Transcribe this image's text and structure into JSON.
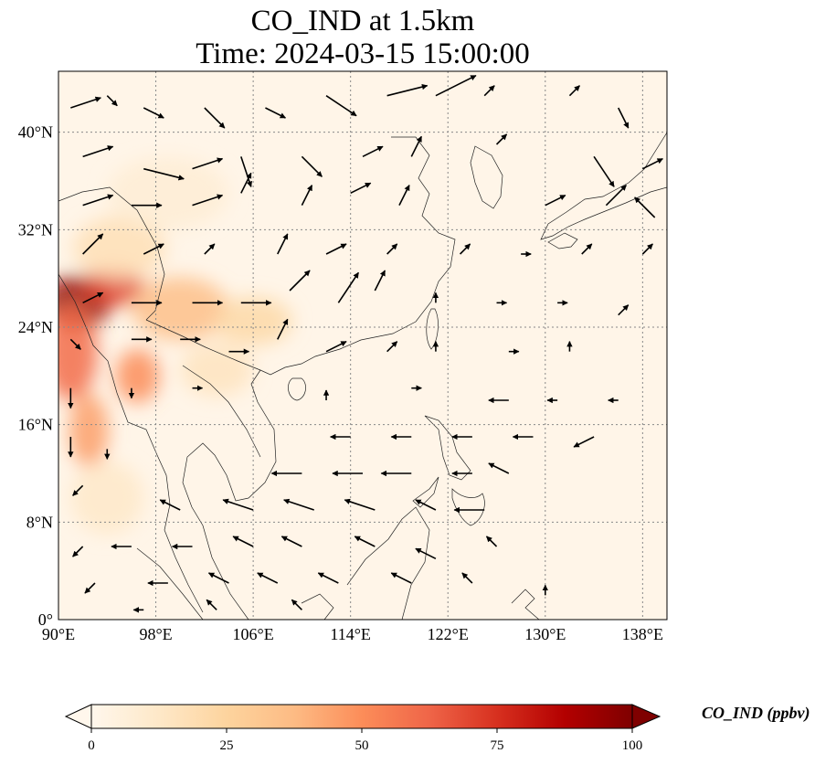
{
  "title": {
    "line1": "CO_IND at 1.5km",
    "line2": "Time: 2024-03-15 15:00:00"
  },
  "map": {
    "lon_range": [
      90,
      140
    ],
    "lat_range": [
      0,
      45
    ],
    "lon_ticks": [
      {
        "value": 90,
        "label": "90°E"
      },
      {
        "value": 98,
        "label": "98°E"
      },
      {
        "value": 106,
        "label": "106°E"
      },
      {
        "value": 114,
        "label": "114°E"
      },
      {
        "value": 122,
        "label": "122°E"
      },
      {
        "value": 130,
        "label": "130°E"
      },
      {
        "value": 138,
        "label": "138°E"
      }
    ],
    "lat_ticks": [
      {
        "value": 0,
        "label": "0°"
      },
      {
        "value": 8,
        "label": "8°N"
      },
      {
        "value": 16,
        "label": "16°N"
      },
      {
        "value": 24,
        "label": "24°N"
      },
      {
        "value": 32,
        "label": "32°N"
      },
      {
        "value": 40,
        "label": "40°N"
      }
    ],
    "gridlines": true
  },
  "colorbar": {
    "label": "CO_IND (ppbv)",
    "min": 0,
    "max": 100,
    "ticks": [
      {
        "value": 0,
        "label": "0"
      },
      {
        "value": 25,
        "label": "25"
      },
      {
        "value": 50,
        "label": "50"
      },
      {
        "value": 75,
        "label": "75"
      },
      {
        "value": 100,
        "label": "100"
      }
    ],
    "colormap": "OrRd",
    "extend": "both",
    "colors": [
      "#fff7ec",
      "#fee8c8",
      "#fdd49e",
      "#fdbb84",
      "#fc8d59",
      "#ef6548",
      "#d7301f",
      "#b30000",
      "#7f0000"
    ]
  },
  "field_blobs": [
    {
      "lon": 91.5,
      "lat": 26.0,
      "rx": 2.8,
      "ry": 2.2,
      "value": 95
    },
    {
      "lon": 94.5,
      "lat": 27.3,
      "rx": 2.5,
      "ry": 1.6,
      "value": 70
    },
    {
      "lon": 91.0,
      "lat": 22.0,
      "rx": 2.2,
      "ry": 4.0,
      "value": 60
    },
    {
      "lon": 96.5,
      "lat": 20.0,
      "rx": 1.8,
      "ry": 2.2,
      "value": 50
    },
    {
      "lon": 92.5,
      "lat": 15.5,
      "rx": 1.6,
      "ry": 3.0,
      "value": 45
    },
    {
      "lon": 100.0,
      "lat": 25.5,
      "rx": 4.0,
      "ry": 2.6,
      "value": 35
    },
    {
      "lon": 106.0,
      "lat": 24.5,
      "rx": 3.2,
      "ry": 2.0,
      "value": 22
    },
    {
      "lon": 95.0,
      "lat": 30.5,
      "rx": 3.8,
      "ry": 2.6,
      "value": 18
    },
    {
      "lon": 103.0,
      "lat": 20.5,
      "rx": 3.0,
      "ry": 2.2,
      "value": 15
    },
    {
      "lon": 99.0,
      "lat": 35.0,
      "rx": 5.0,
      "ry": 3.0,
      "value": 8
    },
    {
      "lon": 94.0,
      "lat": 10.0,
      "rx": 3.0,
      "ry": 3.0,
      "value": 12
    }
  ],
  "wind_vectors": [
    {
      "lon": 91,
      "lat": 42,
      "u": 3,
      "v": 1
    },
    {
      "lon": 94,
      "lat": 43,
      "u": 1,
      "v": -1
    },
    {
      "lon": 97,
      "lat": 42,
      "u": 2,
      "v": -1
    },
    {
      "lon": 102,
      "lat": 42,
      "u": 2,
      "v": -2
    },
    {
      "lon": 107,
      "lat": 42,
      "u": 2,
      "v": -1
    },
    {
      "lon": 112,
      "lat": 43,
      "u": 3,
      "v": -2
    },
    {
      "lon": 117,
      "lat": 43,
      "u": 4,
      "v": 1
    },
    {
      "lon": 121,
      "lat": 43,
      "u": 4,
      "v": 2
    },
    {
      "lon": 125,
      "lat": 43,
      "u": 1,
      "v": 1
    },
    {
      "lon": 132,
      "lat": 43,
      "u": 1,
      "v": 1
    },
    {
      "lon": 136,
      "lat": 42,
      "u": 1,
      "v": -2
    },
    {
      "lon": 92,
      "lat": 38,
      "u": 3,
      "v": 1
    },
    {
      "lon": 97,
      "lat": 37,
      "u": 4,
      "v": -1
    },
    {
      "lon": 101,
      "lat": 37,
      "u": 3,
      "v": 1
    },
    {
      "lon": 105,
      "lat": 38,
      "u": 1,
      "v": -3
    },
    {
      "lon": 110,
      "lat": 38,
      "u": 2,
      "v": -2
    },
    {
      "lon": 115,
      "lat": 38,
      "u": 2,
      "v": 1
    },
    {
      "lon": 119,
      "lat": 38,
      "u": 1,
      "v": 2
    },
    {
      "lon": 126,
      "lat": 39,
      "u": 1,
      "v": 1
    },
    {
      "lon": 134,
      "lat": 38,
      "u": 2,
      "v": -3
    },
    {
      "lon": 138,
      "lat": 37,
      "u": 2,
      "v": 1
    },
    {
      "lon": 92,
      "lat": 34,
      "u": 3,
      "v": 1
    },
    {
      "lon": 96,
      "lat": 34,
      "u": 3,
      "v": 0
    },
    {
      "lon": 101,
      "lat": 34,
      "u": 3,
      "v": 1
    },
    {
      "lon": 105,
      "lat": 35,
      "u": 1,
      "v": 2
    },
    {
      "lon": 110,
      "lat": 34,
      "u": 1,
      "v": 2
    },
    {
      "lon": 114,
      "lat": 35,
      "u": 2,
      "v": 1
    },
    {
      "lon": 118,
      "lat": 34,
      "u": 1,
      "v": 2
    },
    {
      "lon": 130,
      "lat": 34,
      "u": 2,
      "v": 1
    },
    {
      "lon": 135,
      "lat": 34,
      "u": 2,
      "v": 2
    },
    {
      "lon": 139,
      "lat": 33,
      "u": -2,
      "v": 2
    },
    {
      "lon": 92,
      "lat": 30,
      "u": 2,
      "v": 2
    },
    {
      "lon": 97,
      "lat": 30,
      "u": 2,
      "v": 1
    },
    {
      "lon": 102,
      "lat": 30,
      "u": 1,
      "v": 1
    },
    {
      "lon": 108,
      "lat": 30,
      "u": 1,
      "v": 2
    },
    {
      "lon": 112,
      "lat": 30,
      "u": 2,
      "v": 1
    },
    {
      "lon": 117,
      "lat": 30,
      "u": 1,
      "v": 1
    },
    {
      "lon": 123,
      "lat": 30,
      "u": 1,
      "v": 1
    },
    {
      "lon": 128,
      "lat": 30,
      "u": 1,
      "v": 0
    },
    {
      "lon": 133,
      "lat": 30,
      "u": 1,
      "v": 1
    },
    {
      "lon": 138,
      "lat": 30,
      "u": 1,
      "v": 1
    },
    {
      "lon": 92,
      "lat": 26,
      "u": 2,
      "v": 1
    },
    {
      "lon": 96,
      "lat": 26,
      "u": 3,
      "v": 0
    },
    {
      "lon": 101,
      "lat": 26,
      "u": 3,
      "v": 0
    },
    {
      "lon": 105,
      "lat": 26,
      "u": 3,
      "v": 0
    },
    {
      "lon": 109,
      "lat": 27,
      "u": 2,
      "v": 2
    },
    {
      "lon": 113,
      "lat": 26,
      "u": 2,
      "v": 3
    },
    {
      "lon": 116,
      "lat": 27,
      "u": 1,
      "v": 2
    },
    {
      "lon": 121,
      "lat": 26,
      "u": 0,
      "v": 1
    },
    {
      "lon": 126,
      "lat": 26,
      "u": 1,
      "v": 0
    },
    {
      "lon": 131,
      "lat": 26,
      "u": 1,
      "v": 0
    },
    {
      "lon": 136,
      "lat": 25,
      "u": 1,
      "v": 1
    },
    {
      "lon": 91,
      "lat": 23,
      "u": 1,
      "v": -1
    },
    {
      "lon": 96,
      "lat": 23,
      "u": 2,
      "v": 0
    },
    {
      "lon": 100,
      "lat": 23,
      "u": 2,
      "v": 0
    },
    {
      "lon": 104,
      "lat": 22,
      "u": 2,
      "v": 0
    },
    {
      "lon": 108,
      "lat": 23,
      "u": 1,
      "v": 2
    },
    {
      "lon": 112,
      "lat": 22,
      "u": 2,
      "v": 1
    },
    {
      "lon": 117,
      "lat": 22,
      "u": 1,
      "v": 1
    },
    {
      "lon": 121,
      "lat": 22,
      "u": 0,
      "v": 1
    },
    {
      "lon": 127,
      "lat": 22,
      "u": 1,
      "v": 0
    },
    {
      "lon": 132,
      "lat": 22,
      "u": 0,
      "v": 1
    },
    {
      "lon": 91,
      "lat": 19,
      "u": 0,
      "v": -2
    },
    {
      "lon": 96,
      "lat": 19,
      "u": 0,
      "v": -1
    },
    {
      "lon": 101,
      "lat": 19,
      "u": 1,
      "v": 0
    },
    {
      "lon": 112,
      "lat": 18,
      "u": 0,
      "v": 1
    },
    {
      "lon": 119,
      "lat": 19,
      "u": 1,
      "v": 0
    },
    {
      "lon": 127,
      "lat": 18,
      "u": -2,
      "v": 0
    },
    {
      "lon": 131,
      "lat": 18,
      "u": -1,
      "v": 0
    },
    {
      "lon": 136,
      "lat": 18,
      "u": -1,
      "v": 0
    },
    {
      "lon": 91,
      "lat": 15,
      "u": 0,
      "v": -2
    },
    {
      "lon": 94,
      "lat": 14,
      "u": 0,
      "v": -1
    },
    {
      "lon": 114,
      "lat": 15,
      "u": -2,
      "v": 0
    },
    {
      "lon": 119,
      "lat": 15,
      "u": -2,
      "v": 0
    },
    {
      "lon": 124,
      "lat": 15,
      "u": -2,
      "v": 0
    },
    {
      "lon": 129,
      "lat": 15,
      "u": -2,
      "v": 0
    },
    {
      "lon": 134,
      "lat": 15,
      "u": -2,
      "v": -1
    },
    {
      "lon": 110,
      "lat": 12,
      "u": -3,
      "v": 0
    },
    {
      "lon": 115,
      "lat": 12,
      "u": -3,
      "v": 0
    },
    {
      "lon": 119,
      "lat": 12,
      "u": -3,
      "v": 0
    },
    {
      "lon": 124,
      "lat": 12,
      "u": -2,
      "v": 0
    },
    {
      "lon": 127,
      "lat": 12,
      "u": -2,
      "v": 1
    },
    {
      "lon": 92,
      "lat": 11,
      "u": -1,
      "v": -1
    },
    {
      "lon": 100,
      "lat": 9,
      "u": -2,
      "v": 1
    },
    {
      "lon": 106,
      "lat": 9,
      "u": -3,
      "v": 1
    },
    {
      "lon": 111,
      "lat": 9,
      "u": -3,
      "v": 1
    },
    {
      "lon": 116,
      "lat": 9,
      "u": -3,
      "v": 1
    },
    {
      "lon": 121,
      "lat": 9,
      "u": -2,
      "v": 1
    },
    {
      "lon": 125,
      "lat": 9,
      "u": -3,
      "v": 0
    },
    {
      "lon": 92,
      "lat": 6,
      "u": -1,
      "v": -1
    },
    {
      "lon": 96,
      "lat": 6,
      "u": -2,
      "v": 0
    },
    {
      "lon": 101,
      "lat": 6,
      "u": -2,
      "v": 0
    },
    {
      "lon": 106,
      "lat": 6,
      "u": -2,
      "v": 1
    },
    {
      "lon": 110,
      "lat": 6,
      "u": -2,
      "v": 1
    },
    {
      "lon": 116,
      "lat": 6,
      "u": -2,
      "v": 1
    },
    {
      "lon": 121,
      "lat": 5,
      "u": -2,
      "v": 1
    },
    {
      "lon": 126,
      "lat": 6,
      "u": -1,
      "v": 1
    },
    {
      "lon": 93,
      "lat": 3,
      "u": -1,
      "v": -1
    },
    {
      "lon": 99,
      "lat": 3,
      "u": -2,
      "v": 0
    },
    {
      "lon": 104,
      "lat": 3,
      "u": -2,
      "v": 1
    },
    {
      "lon": 108,
      "lat": 3,
      "u": -2,
      "v": 1
    },
    {
      "lon": 113,
      "lat": 3,
      "u": -2,
      "v": 1
    },
    {
      "lon": 119,
      "lat": 3,
      "u": -2,
      "v": 1
    },
    {
      "lon": 124,
      "lat": 3,
      "u": -1,
      "v": 1
    },
    {
      "lon": 130,
      "lat": 2,
      "u": 0,
      "v": 1
    },
    {
      "lon": 97,
      "lat": 0.8,
      "u": -1,
      "v": 0
    },
    {
      "lon": 103,
      "lat": 0.8,
      "u": -1,
      "v": 1
    },
    {
      "lon": 110,
      "lat": 0.8,
      "u": -1,
      "v": 1
    }
  ]
}
